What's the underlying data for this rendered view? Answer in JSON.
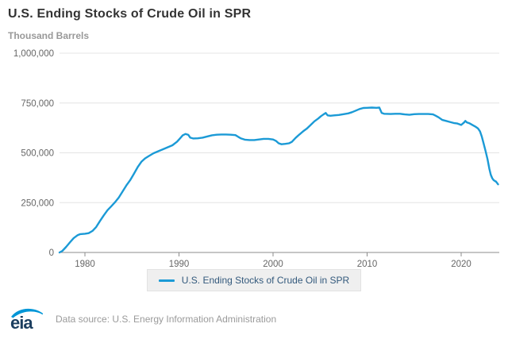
{
  "header": {
    "title": "U.S. Ending Stocks of Crude Oil in SPR",
    "units_label": "Thousand Barrels"
  },
  "legend": {
    "label": "U.S. Ending Stocks of Crude Oil in SPR"
  },
  "footer": {
    "logo_text": "eia",
    "source": "Data source: U.S. Energy Information Administration"
  },
  "colors": {
    "line": "#1b9ad6",
    "grid": "#e4e4e4",
    "axis": "#8c8c8c",
    "tick_label": "#666666",
    "title": "#333333",
    "subtitle": "#999999",
    "legend_bg": "#efefef",
    "legend_text": "#33597c",
    "logo_navy": "#1b3e5f",
    "logo_blue": "#0096d7"
  },
  "chart_data": {
    "type": "line",
    "title": "U.S. Ending Stocks of Crude Oil in SPR",
    "xlabel": "",
    "ylabel": "Thousand Barrels",
    "xlim": [
      1977.2,
      2024.0
    ],
    "ylim": [
      0,
      1000000
    ],
    "grid": "horizontal",
    "legend_position": "bottom",
    "x_ticks": [
      {
        "v": 1980,
        "label": "1980"
      },
      {
        "v": 1990,
        "label": "1990"
      },
      {
        "v": 2000,
        "label": "2000"
      },
      {
        "v": 2010,
        "label": "2010"
      },
      {
        "v": 2020,
        "label": "2020"
      }
    ],
    "y_ticks": [
      {
        "v": 0,
        "label": "0"
      },
      {
        "v": 250000,
        "label": "250,000"
      },
      {
        "v": 500000,
        "label": "500,000"
      },
      {
        "v": 750000,
        "label": "750,000"
      },
      {
        "v": 1000000,
        "label": "1,000,000"
      }
    ],
    "series": [
      {
        "name": "U.S. Ending Stocks of Crude Oil in SPR",
        "points": [
          [
            1977.3,
            0
          ],
          [
            1977.6,
            8000
          ],
          [
            1978.0,
            28000
          ],
          [
            1978.4,
            50000
          ],
          [
            1978.8,
            72000
          ],
          [
            1979.2,
            86000
          ],
          [
            1979.5,
            92000
          ],
          [
            1980.0,
            94000
          ],
          [
            1980.4,
            97000
          ],
          [
            1980.8,
            108000
          ],
          [
            1981.2,
            128000
          ],
          [
            1981.6,
            158000
          ],
          [
            1982.0,
            186000
          ],
          [
            1982.4,
            212000
          ],
          [
            1982.8,
            232000
          ],
          [
            1983.2,
            252000
          ],
          [
            1983.6,
            276000
          ],
          [
            1984.0,
            306000
          ],
          [
            1984.4,
            336000
          ],
          [
            1984.8,
            362000
          ],
          [
            1985.2,
            394000
          ],
          [
            1985.6,
            428000
          ],
          [
            1986.0,
            455000
          ],
          [
            1986.4,
            472000
          ],
          [
            1986.8,
            484000
          ],
          [
            1987.3,
            498000
          ],
          [
            1987.8,
            508000
          ],
          [
            1988.3,
            518000
          ],
          [
            1988.8,
            528000
          ],
          [
            1989.3,
            538000
          ],
          [
            1989.8,
            556000
          ],
          [
            1990.1,
            572000
          ],
          [
            1990.4,
            588000
          ],
          [
            1990.7,
            595000
          ],
          [
            1991.0,
            590000
          ],
          [
            1991.2,
            576000
          ],
          [
            1991.5,
            572000
          ],
          [
            1992.0,
            573000
          ],
          [
            1992.5,
            576000
          ],
          [
            1993.0,
            582000
          ],
          [
            1993.5,
            588000
          ],
          [
            1994.0,
            591000
          ],
          [
            1994.5,
            592000
          ],
          [
            1995.0,
            592000
          ],
          [
            1995.5,
            591000
          ],
          [
            1996.0,
            589000
          ],
          [
            1996.3,
            580000
          ],
          [
            1996.6,
            572000
          ],
          [
            1997.0,
            566000
          ],
          [
            1997.5,
            564000
          ],
          [
            1998.0,
            564000
          ],
          [
            1998.5,
            567000
          ],
          [
            1999.0,
            570000
          ],
          [
            1999.5,
            570000
          ],
          [
            2000.0,
            567000
          ],
          [
            2000.3,
            560000
          ],
          [
            2000.6,
            548000
          ],
          [
            2000.9,
            543000
          ],
          [
            2001.3,
            545000
          ],
          [
            2001.7,
            548000
          ],
          [
            2002.0,
            555000
          ],
          [
            2002.4,
            575000
          ],
          [
            2002.8,
            592000
          ],
          [
            2003.2,
            608000
          ],
          [
            2003.6,
            622000
          ],
          [
            2004.0,
            640000
          ],
          [
            2004.4,
            658000
          ],
          [
            2004.8,
            672000
          ],
          [
            2005.1,
            684000
          ],
          [
            2005.4,
            694000
          ],
          [
            2005.6,
            700000
          ],
          [
            2005.8,
            688000
          ],
          [
            2006.1,
            686000
          ],
          [
            2006.5,
            688000
          ],
          [
            2007.0,
            690000
          ],
          [
            2007.5,
            694000
          ],
          [
            2008.0,
            698000
          ],
          [
            2008.4,
            704000
          ],
          [
            2008.8,
            712000
          ],
          [
            2009.2,
            720000
          ],
          [
            2009.6,
            725000
          ],
          [
            2010.0,
            726000
          ],
          [
            2010.5,
            727000
          ],
          [
            2011.0,
            726000
          ],
          [
            2011.3,
            727000
          ],
          [
            2011.55,
            700000
          ],
          [
            2011.8,
            696000
          ],
          [
            2012.5,
            695000
          ],
          [
            2013.0,
            696000
          ],
          [
            2013.5,
            696000
          ],
          [
            2014.0,
            693000
          ],
          [
            2014.5,
            691000
          ],
          [
            2015.0,
            694000
          ],
          [
            2015.5,
            695000
          ],
          [
            2016.0,
            695000
          ],
          [
            2016.5,
            695000
          ],
          [
            2017.0,
            693000
          ],
          [
            2017.3,
            686000
          ],
          [
            2017.6,
            678000
          ],
          [
            2018.0,
            665000
          ],
          [
            2018.4,
            660000
          ],
          [
            2018.8,
            655000
          ],
          [
            2019.2,
            650000
          ],
          [
            2019.6,
            647000
          ],
          [
            2020.0,
            640000
          ],
          [
            2020.3,
            652000
          ],
          [
            2020.45,
            660000
          ],
          [
            2020.6,
            653000
          ],
          [
            2020.9,
            648000
          ],
          [
            2021.2,
            640000
          ],
          [
            2021.5,
            632000
          ],
          [
            2021.8,
            622000
          ],
          [
            2022.0,
            608000
          ],
          [
            2022.2,
            580000
          ],
          [
            2022.4,
            545000
          ],
          [
            2022.6,
            508000
          ],
          [
            2022.8,
            468000
          ],
          [
            2023.0,
            420000
          ],
          [
            2023.15,
            390000
          ],
          [
            2023.3,
            373000
          ],
          [
            2023.45,
            363000
          ],
          [
            2023.6,
            358000
          ],
          [
            2023.7,
            356000
          ],
          [
            2023.8,
            350000
          ],
          [
            2023.92,
            342000
          ]
        ]
      }
    ]
  }
}
